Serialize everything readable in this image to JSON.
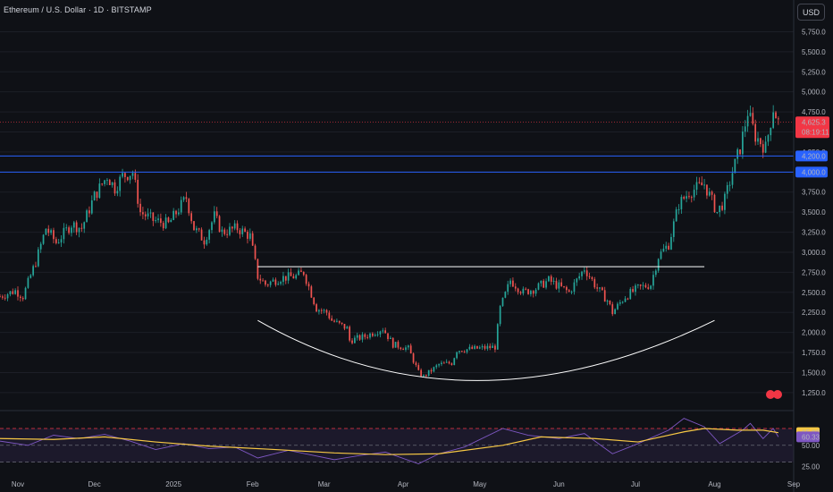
{
  "header": {
    "title": "Ethereum / U.S. Dollar · 1D · BITSTAMP",
    "currency_button": "USD"
  },
  "colors": {
    "background": "#0f1116",
    "up": "#26a69a",
    "down": "#ef5350",
    "price_label": "#f23645",
    "level_line": "#2962ff",
    "rsi_line": "#7e57c2",
    "rsi_ma": "#f7c844",
    "rsi_band": "#7e57c2"
  },
  "chart_data": [
    {
      "type": "candlestick",
      "title": "Ethereum / U.S. Dollar · 1D · BITSTAMP",
      "y_axis": {
        "ticks": [
          "5,750.0",
          "5,500.0",
          "5,250.0",
          "5,000.0",
          "4,750.0",
          "4,500.0",
          "4,250.0",
          "3,750.0",
          "3,500.0",
          "3,250.0",
          "3,000.0",
          "2,750.0",
          "2,500.0",
          "2,250.0",
          "2,000.0",
          "1,750.0",
          "1,500.0",
          "1,250.0"
        ],
        "ylim": [
          1070,
          5900
        ]
      },
      "x_axis": {
        "ticks": [
          "Nov",
          "Dec",
          "2025",
          "Feb",
          "Mar",
          "Apr",
          "May",
          "Jun",
          "Jul",
          "Aug",
          "Sep"
        ],
        "tick_dates": [
          "2024-11-01",
          "2024-12-01",
          "2025-01-01",
          "2025-02-01",
          "2025-03-01",
          "2025-04-01",
          "2025-05-01",
          "2025-06-01",
          "2025-07-01",
          "2025-08-01",
          "2025-09-01"
        ],
        "xlim": [
          "2024-10-25",
          "2025-09-01"
        ]
      },
      "close_path": [
        [
          "2024-10-25",
          2450
        ],
        [
          "2024-10-31",
          2520
        ],
        [
          "2024-11-03",
          2450
        ],
        [
          "2024-11-08",
          2880
        ],
        [
          "2024-11-12",
          3300
        ],
        [
          "2024-11-16",
          3120
        ],
        [
          "2024-11-22",
          3350
        ],
        [
          "2024-11-26",
          3300
        ],
        [
          "2024-12-01",
          3700
        ],
        [
          "2024-12-06",
          3950
        ],
        [
          "2024-12-09",
          3800
        ],
        [
          "2024-12-12",
          3950
        ],
        [
          "2024-12-16",
          4000
        ],
        [
          "2024-12-19",
          3500
        ],
        [
          "2024-12-24",
          3400
        ],
        [
          "2024-12-30",
          3350
        ],
        [
          "2025-01-06",
          3680
        ],
        [
          "2025-01-09",
          3300
        ],
        [
          "2025-01-13",
          3150
        ],
        [
          "2025-01-17",
          3450
        ],
        [
          "2025-01-20",
          3250
        ],
        [
          "2025-01-26",
          3300
        ],
        [
          "2025-01-31",
          3200
        ],
        [
          "2025-02-03",
          2700
        ],
        [
          "2025-02-06",
          2600
        ],
        [
          "2025-02-12",
          2680
        ],
        [
          "2025-02-18",
          2700
        ],
        [
          "2025-02-21",
          2750
        ],
        [
          "2025-02-26",
          2300
        ],
        [
          "2025-03-02",
          2250
        ],
        [
          "2025-03-04",
          2150
        ],
        [
          "2025-03-10",
          2050
        ],
        [
          "2025-03-11",
          1900
        ],
        [
          "2025-03-17",
          1950
        ],
        [
          "2025-03-24",
          2050
        ],
        [
          "2025-03-28",
          1850
        ],
        [
          "2025-04-03",
          1800
        ],
        [
          "2025-04-07",
          1500
        ],
        [
          "2025-04-09",
          1450
        ],
        [
          "2025-04-15",
          1600
        ],
        [
          "2025-04-20",
          1620
        ],
        [
          "2025-04-22",
          1780
        ],
        [
          "2025-04-30",
          1800
        ],
        [
          "2025-05-07",
          1820
        ],
        [
          "2025-05-09",
          2300
        ],
        [
          "2025-05-13",
          2650
        ],
        [
          "2025-05-18",
          2500
        ],
        [
          "2025-05-23",
          2550
        ],
        [
          "2025-05-28",
          2650
        ],
        [
          "2025-06-05",
          2500
        ],
        [
          "2025-06-11",
          2800
        ],
        [
          "2025-06-16",
          2550
        ],
        [
          "2025-06-20",
          2400
        ],
        [
          "2025-06-22",
          2250
        ],
        [
          "2025-06-27",
          2450
        ],
        [
          "2025-07-02",
          2550
        ],
        [
          "2025-07-07",
          2600
        ],
        [
          "2025-07-10",
          2950
        ],
        [
          "2025-07-14",
          3100
        ],
        [
          "2025-07-18",
          3600
        ],
        [
          "2025-07-22",
          3750
        ],
        [
          "2025-07-28",
          3850
        ],
        [
          "2025-08-02",
          3500
        ],
        [
          "2025-08-05",
          3650
        ],
        [
          "2025-08-08",
          4000
        ],
        [
          "2025-08-11",
          4300
        ],
        [
          "2025-08-14",
          4750
        ],
        [
          "2025-08-17",
          4450
        ],
        [
          "2025-08-21",
          4300
        ],
        [
          "2025-08-24",
          4800
        ],
        [
          "2025-08-26",
          4625
        ]
      ],
      "levels": [
        {
          "value": 4200,
          "label": "4,200.0"
        },
        {
          "value": 4000,
          "label": "4,000.0"
        }
      ],
      "last_price": {
        "label": "4,625.3",
        "countdown": "08:19:11",
        "value": 4625.3
      },
      "drawings": {
        "resistance_line": {
          "from": [
            "2025-02-03",
            2820
          ],
          "to": [
            "2025-07-28",
            2820
          ]
        },
        "cup_arc": {
          "start": [
            "2025-02-03",
            2150
          ],
          "bottom": [
            "2025-04-30",
            1400
          ],
          "end": [
            "2025-08-01",
            2150
          ]
        }
      }
    },
    {
      "type": "line",
      "title": "RSI",
      "y_axis": {
        "ticks": [
          "50.00",
          "25.00"
        ],
        "ylim": [
          18,
          88
        ],
        "band": [
          30,
          70
        ]
      },
      "x_axis": {
        "xlim": [
          "2024-10-25",
          "2025-09-01"
        ]
      },
      "series": [
        {
          "role": "rsi",
          "value_label": "60.33",
          "path": [
            [
              "2024-10-25",
              55
            ],
            [
              "2024-11-05",
              50
            ],
            [
              "2024-11-15",
              62
            ],
            [
              "2024-11-25",
              58
            ],
            [
              "2024-12-05",
              63
            ],
            [
              "2024-12-15",
              55
            ],
            [
              "2024-12-25",
              45
            ],
            [
              "2025-01-05",
              52
            ],
            [
              "2025-01-15",
              46
            ],
            [
              "2025-01-25",
              48
            ],
            [
              "2025-02-03",
              35
            ],
            [
              "2025-02-15",
              44
            ],
            [
              "2025-02-25",
              38
            ],
            [
              "2025-03-05",
              33
            ],
            [
              "2025-03-15",
              38
            ],
            [
              "2025-03-25",
              42
            ],
            [
              "2025-04-07",
              28
            ],
            [
              "2025-04-15",
              40
            ],
            [
              "2025-04-25",
              48
            ],
            [
              "2025-05-10",
              70
            ],
            [
              "2025-05-20",
              62
            ],
            [
              "2025-06-01",
              58
            ],
            [
              "2025-06-11",
              64
            ],
            [
              "2025-06-22",
              40
            ],
            [
              "2025-07-02",
              52
            ],
            [
              "2025-07-14",
              68
            ],
            [
              "2025-07-20",
              82
            ],
            [
              "2025-07-28",
              72
            ],
            [
              "2025-08-03",
              52
            ],
            [
              "2025-08-12",
              68
            ],
            [
              "2025-08-15",
              76
            ],
            [
              "2025-08-20",
              58
            ],
            [
              "2025-08-24",
              70
            ],
            [
              "2025-08-26",
              60
            ]
          ]
        },
        {
          "role": "ma",
          "value_label": "65.03",
          "path": [
            [
              "2024-10-25",
              58
            ],
            [
              "2024-11-15",
              57
            ],
            [
              "2024-12-05",
              60
            ],
            [
              "2024-12-25",
              54
            ],
            [
              "2025-01-15",
              49
            ],
            [
              "2025-02-10",
              45
            ],
            [
              "2025-03-05",
              41
            ],
            [
              "2025-03-25",
              39
            ],
            [
              "2025-04-15",
              40
            ],
            [
              "2025-05-10",
              50
            ],
            [
              "2025-05-25",
              60
            ],
            [
              "2025-06-15",
              58
            ],
            [
              "2025-07-02",
              54
            ],
            [
              "2025-07-20",
              66
            ],
            [
              "2025-07-28",
              70
            ],
            [
              "2025-08-10",
              68
            ],
            [
              "2025-08-20",
              68
            ],
            [
              "2025-08-26",
              65
            ]
          ]
        }
      ]
    }
  ]
}
